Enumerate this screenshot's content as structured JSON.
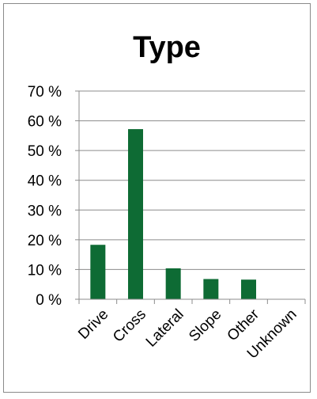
{
  "chart_data": {
    "type": "bar",
    "title": "Type",
    "categories": [
      "Drive",
      "Cross",
      "Lateral",
      "Slope",
      "Other",
      "Unknown"
    ],
    "values": [
      18.3,
      57.2,
      10.4,
      6.8,
      6.6,
      0.0
    ],
    "ylim": [
      0,
      70
    ],
    "ytick_labels": [
      "0 %",
      "10 %",
      "20 %",
      "30 %",
      "40 %",
      "50 %",
      "60 %",
      "70 %"
    ],
    "gridlines": true,
    "legend": "none",
    "bar_color": "#0e6b34"
  }
}
